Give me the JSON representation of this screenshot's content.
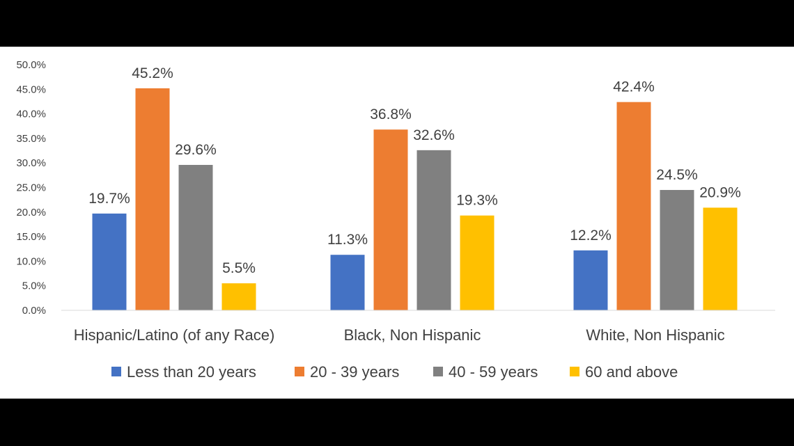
{
  "chart_data": {
    "type": "bar",
    "categories": [
      "Hispanic/Latino (of any Race)",
      "Black, Non Hispanic",
      "White, Non Hispanic"
    ],
    "series": [
      {
        "name": "Less than 20 years",
        "values": [
          19.7,
          11.3,
          12.2
        ],
        "labels": [
          "19.7%",
          "11.3%",
          "12.2%"
        ],
        "color": "#4472C4"
      },
      {
        "name": "20 - 39 years",
        "values": [
          45.2,
          36.8,
          42.4
        ],
        "labels": [
          "45.2%",
          "36.8%",
          "42.4%"
        ],
        "color": "#ED7D31"
      },
      {
        "name": "40 - 59 years",
        "values": [
          29.6,
          32.6,
          24.5
        ],
        "labels": [
          "29.6%",
          "32.6%",
          "24.5%"
        ],
        "color": "#808080"
      },
      {
        "name": "60 and above",
        "values": [
          5.5,
          19.3,
          20.9
        ],
        "labels": [
          "5.5%",
          "19.3%",
          "20.9%"
        ],
        "color": "#FFC000"
      }
    ],
    "yticks": [
      "0.0%",
      "5.0%",
      "10.0%",
      "15.0%",
      "20.0%",
      "25.0%",
      "30.0%",
      "35.0%",
      "40.0%",
      "45.0%",
      "50.0%"
    ],
    "ylim": [
      0,
      50
    ],
    "grid": false,
    "legend_position": "bottom"
  }
}
